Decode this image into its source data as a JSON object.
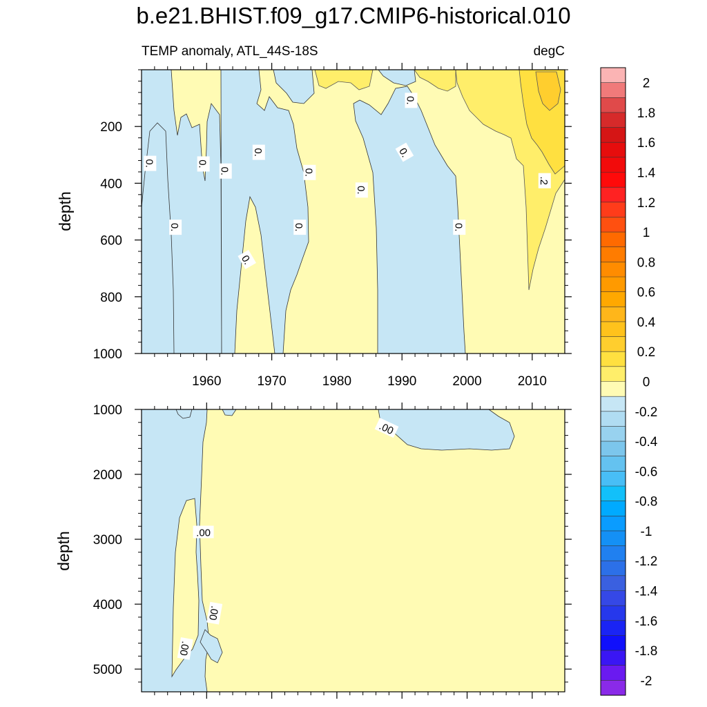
{
  "chart_data": {
    "type": "contour",
    "title": "b.e21.BHIST.f09_g17.CMIP6-historical.010",
    "subtitle_left": "TEMP anomaly, ATL_44S-18S",
    "subtitle_right": "degC",
    "x": {
      "range": [
        1950,
        2015
      ],
      "ticks": [
        1960,
        1970,
        1980,
        1990,
        2000,
        2010
      ],
      "tick_labels": [
        "1960",
        "1970",
        "1980",
        "1990",
        "2000",
        "2010"
      ]
    },
    "panels": [
      {
        "name": "upper",
        "ylabel": "depth",
        "ylim": [
          0,
          1000
        ],
        "yticks": [
          200,
          400,
          600,
          800,
          1000
        ],
        "ytick_labels": [
          "200",
          "400",
          "600",
          "800",
          "1000"
        ],
        "contour_labels": [
          {
            "text": "0.",
            "x": 1951.2,
            "y": 330,
            "angle": 90
          },
          {
            "text": "0.",
            "x": 1955.1,
            "y": 555,
            "angle": 90
          },
          {
            "text": "0.",
            "x": 1959.4,
            "y": 332,
            "angle": 90
          },
          {
            "text": "0.",
            "x": 1962.8,
            "y": 357,
            "angle": 90
          },
          {
            "text": "0.",
            "x": 1966.1,
            "y": 670,
            "angle": 60
          },
          {
            "text": "0.",
            "x": 1967.9,
            "y": 291,
            "angle": 90
          },
          {
            "text": "0.",
            "x": 1975.7,
            "y": 362,
            "angle": 90
          },
          {
            "text": "0.",
            "x": 1974.2,
            "y": 555,
            "angle": 90
          },
          {
            "text": "0.",
            "x": 1983.7,
            "y": 424,
            "angle": 90
          },
          {
            "text": "0.",
            "x": 1991.3,
            "y": 108,
            "angle": 90
          },
          {
            "text": "0.",
            "x": 1990.3,
            "y": 292,
            "angle": 60
          },
          {
            "text": "0.",
            "x": 1998.7,
            "y": 555,
            "angle": 90
          },
          {
            "text": ".2",
            "x": 2011.8,
            "y": 391,
            "angle": 90
          }
        ]
      },
      {
        "name": "lower",
        "ylabel": "depth",
        "ylim": [
          1000,
          5350
        ],
        "yticks": [
          1000,
          2000,
          3000,
          4000,
          5000
        ],
        "ytick_labels": [
          "1000",
          "2000",
          "3000",
          "4000",
          "5000"
        ],
        "contour_labels": [
          {
            "text": ".00",
            "x": 1987.6,
            "y": 1293,
            "angle": 25
          },
          {
            "text": ".00",
            "x": 1959.5,
            "y": 2898,
            "angle": 0
          },
          {
            "text": ".00",
            "x": 1961.1,
            "y": 4137,
            "angle": 100
          },
          {
            "text": ".00",
            "x": 1956.6,
            "y": 4682,
            "angle": 100
          }
        ]
      }
    ],
    "colorbar": {
      "levels": [
        "2",
        "1.8",
        "1.6",
        "1.4",
        "1.2",
        "1",
        "0.8",
        "0.6",
        "0.4",
        "0.2",
        "0",
        "-0.2",
        "-0.4",
        "-0.6",
        "-0.8",
        "-1",
        "-1.2",
        "-1.4",
        "-1.6",
        "-1.8",
        "-2"
      ],
      "colors": [
        "#fbb4b4",
        "#f07a7a",
        "#e04a4a",
        "#d62a2a",
        "#d51515",
        "#e60d0d",
        "#f20b0b",
        "#ff0a0a",
        "#ff2222",
        "#ff3c1a",
        "#ff5010",
        "#ff6a00",
        "#ff7c00",
        "#ff8c00",
        "#ff9a00",
        "#ffa800",
        "#ffb61a",
        "#ffc21c",
        "#ffce2e",
        "#ffe040",
        "#ffee6a",
        "#fffbb4",
        "#c6e6f5",
        "#b0dcf2",
        "#98d2ef",
        "#7cc6ec",
        "#64c2f0",
        "#48bef6",
        "#12c0fa",
        "#00aaff",
        "#0a9cff",
        "#1490f5",
        "#2080f0",
        "#2c70e8",
        "#3a60e0",
        "#3548e6",
        "#2638ec",
        "#1a24f4",
        "#1010fb",
        "#3a16f4",
        "#6a1af0",
        "#8a2ae8"
      ]
    }
  }
}
